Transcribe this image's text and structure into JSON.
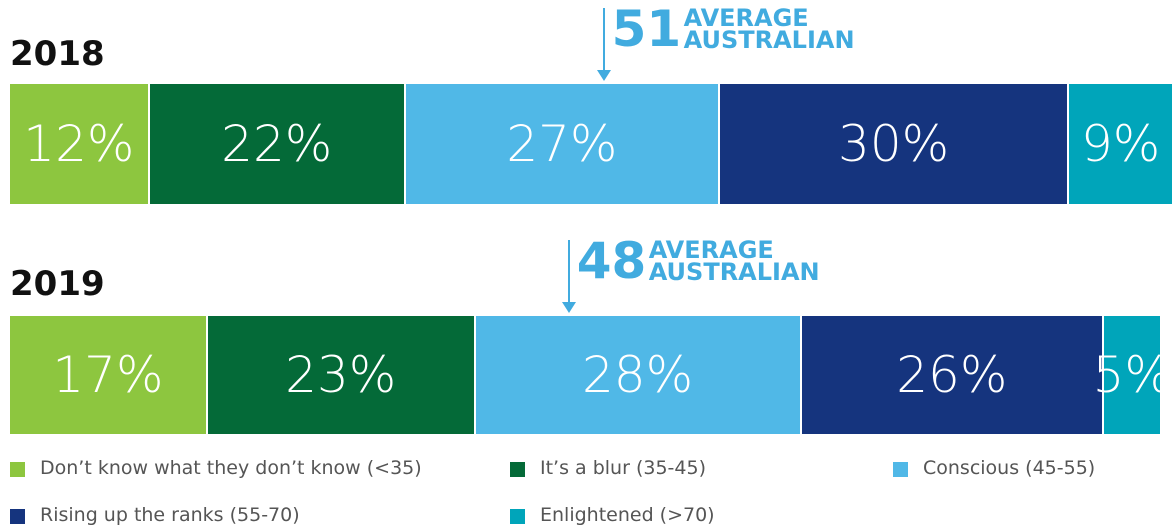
{
  "chart_data": {
    "type": "stacked_bar",
    "orientation": "horizontal",
    "xlim": [
      0,
      100
    ],
    "categories": [
      "2018",
      "2019"
    ],
    "series": [
      {
        "name": "Don’t know what they don’t know (<35)",
        "color": "#8dc63f",
        "values": [
          12,
          17
        ],
        "value_labels": [
          "12%",
          "17%"
        ]
      },
      {
        "name": "It’s a blur (35-45)",
        "color": "#046a38",
        "values": [
          22,
          23
        ],
        "value_labels": [
          "22%",
          "23%"
        ]
      },
      {
        "name": "Conscious (45-55)",
        "color": "#50b8e7",
        "values": [
          27,
          28
        ],
        "value_labels": [
          "27%",
          "28%"
        ]
      },
      {
        "name": "Rising up the ranks (55-70)",
        "color": "#15347e",
        "values": [
          30,
          26
        ],
        "value_labels": [
          "30%",
          "26%"
        ]
      },
      {
        "name": "Enlightened (>70)",
        "color": "#00a5ba",
        "values": [
          9,
          5
        ],
        "value_labels": [
          "9%",
          "5%"
        ]
      }
    ],
    "annotations": [
      {
        "value": 51,
        "label": "AVERAGE AUSTRALIAN"
      },
      {
        "value": 48,
        "label": "AVERAGE AUSTRALIAN"
      }
    ],
    "annotation_color": "#41abdf"
  }
}
